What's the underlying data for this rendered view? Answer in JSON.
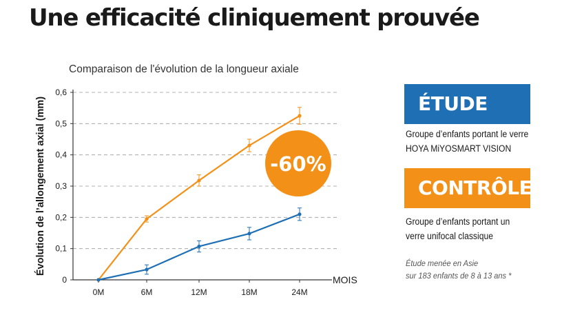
{
  "page": {
    "title": "Une efficacité cliniquement prouvée"
  },
  "legend": {
    "study": {
      "label": "ÉTUDE",
      "color": "#1e6fb4",
      "line1": "Groupe d’enfants portant le verre",
      "line2": "HOYA MiYOSMART VISION"
    },
    "control": {
      "label": "CONTRÔLE",
      "color": "#f39018",
      "line1": "Groupe d’enfants portant un",
      "line2": "verre unifocal classique"
    },
    "footnote_line1": "Étude menée en Asie",
    "footnote_line2": "sur 183 enfants de 8 à 13 ans *"
  },
  "badge": {
    "text": "-60%",
    "color": "#f39018"
  },
  "chart_data": {
    "type": "line",
    "title": "Comparaison de l'évolution de la longueur axiale",
    "xlabel": "MOIS",
    "ylabel": "Évolution de l’allongement axial (mm)",
    "categories": [
      "0M",
      "6M",
      "12M",
      "18M",
      "24M"
    ],
    "ylim": [
      0,
      0.6
    ],
    "yticks": [
      "0",
      "0,1",
      "0,2",
      "0,3",
      "0,4",
      "0,5",
      "0,6"
    ],
    "grid": true,
    "series": [
      {
        "key": "control",
        "color": "#f39018",
        "values": [
          0,
          0.195,
          0.318,
          0.43,
          0.525
        ],
        "errors": [
          0,
          0.01,
          0.018,
          0.02,
          0.027
        ]
      },
      {
        "key": "study",
        "color": "#1e6fb4",
        "values": [
          0,
          0.033,
          0.107,
          0.148,
          0.21
        ],
        "errors": [
          0,
          0.015,
          0.018,
          0.02,
          0.02
        ]
      }
    ]
  }
}
